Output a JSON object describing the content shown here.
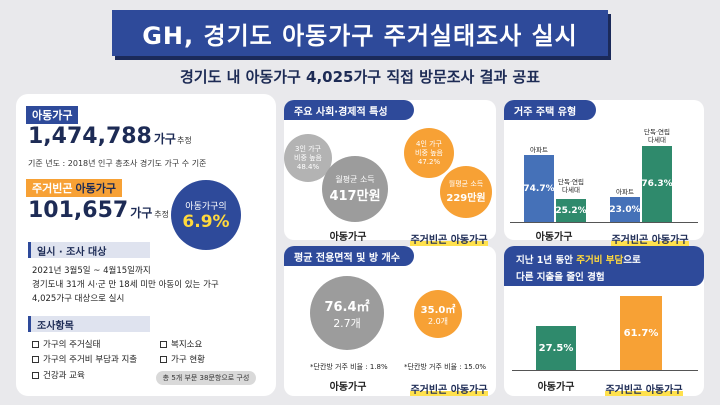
{
  "header": {
    "title": "GH, 경기도 아동가구 주거실태조사 실시",
    "subtitle": "경기도 내 아동가구 4,025가구 직접 방문조사 결과 공표"
  },
  "left": {
    "child_hh_tag": "아동가구",
    "child_hh_number": "1,474,788",
    "child_hh_unit": "가구",
    "child_hh_est": "추정",
    "base_note": "기준 년도 : 2018년 인구 총조사 경기도 가구 수 기준",
    "poor_tag_highlight": "주거빈곤",
    "poor_tag_plain": "아동가구",
    "poor_number": "101,657",
    "poor_unit": "가구",
    "poor_est": "추정",
    "ratio_label": "아동가구의",
    "ratio_value": "6.9%",
    "schedule_title": "일시 · 조사 대상",
    "schedule_lines": [
      "2021년 3월5일 ~ 4월15일까지",
      "경기도내 31개 시·군 만 18세 미만 아동이 있는 가구",
      "4,025가구 대상으로 실시"
    ],
    "items_title": "조사항목",
    "items": [
      "가구의 주거실태",
      "복지소요",
      "가구의 주거비 부담과 지출",
      "가구 현황",
      "건강과 교육"
    ],
    "items_total": "총 5개 부문 38문항으로 구성"
  },
  "socio": {
    "title": "주요 사회·경제적 특성",
    "child": {
      "multi_label": "3인 가구\n비중 높음",
      "multi_value": "48.4%",
      "income_label": "월평균 소득",
      "income_value": "417만원",
      "category": "아동가구"
    },
    "poor": {
      "multi_label": "4인 가구\n비중 높음",
      "multi_value": "47.2%",
      "income_label": "월평균 소득",
      "income_value": "229만원",
      "category": "주거빈곤 아동가구"
    }
  },
  "housing": {
    "title": "거주 주택 유형",
    "child": {
      "category": "아동가구",
      "apt_label": "아파트",
      "apt_value": "74.7%",
      "multi_label": "단독·연립\n다세대",
      "multi_value": "25.2%"
    },
    "poor": {
      "category": "주거빈곤 아동가구",
      "apt_label": "아파트",
      "apt_value": "23.0%",
      "multi_label": "단독·연립\n다세대",
      "multi_value": "76.3%"
    }
  },
  "area": {
    "title": "평균 전용면적 및 방 개수",
    "child": {
      "area_value": "76.4㎡",
      "rooms": "2.7개",
      "note": "*단칸방 거주 비율 : 1.8%",
      "category": "아동가구"
    },
    "poor": {
      "area_value": "35.0㎡",
      "rooms": "2.0개",
      "note": "*단칸방 거주 비율 : 15.0%",
      "category": "주거빈곤 아동가구"
    }
  },
  "burden": {
    "title_line1_a": "지난 1년 동안 ",
    "title_line1_hl": "주거비 부담",
    "title_line1_b": "으로",
    "title_line2": "다른 지출을 줄인 경험",
    "child": {
      "value": "27.5%",
      "category": "아동가구"
    },
    "poor": {
      "value": "61.7%",
      "category": "주거빈곤 아동가구"
    }
  },
  "colors": {
    "navy": "#2e4a9a",
    "orange": "#f7a135",
    "gray": "#a6a6a6",
    "teal": "#2f8a6c",
    "blue_bar": "#4571b8",
    "yellow": "#ffd93d"
  }
}
